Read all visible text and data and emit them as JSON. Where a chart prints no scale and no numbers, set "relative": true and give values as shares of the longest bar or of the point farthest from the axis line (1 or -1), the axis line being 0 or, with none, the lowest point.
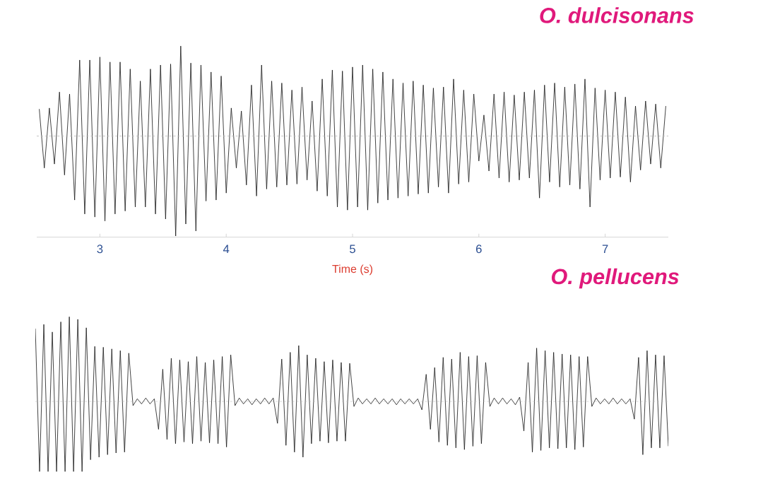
{
  "chart_data": [
    {
      "type": "line",
      "title": "O. dulcisonans",
      "xlabel": "Time (s)",
      "relative": true,
      "xlim": [
        2.5,
        7.5
      ],
      "xticks": [
        3,
        4,
        5,
        6,
        7
      ],
      "color": "#141414",
      "ref_lines": [
        {
          "axis": "y",
          "value": 0,
          "line_style": "dashed",
          "color": "#b4b4b4"
        }
      ],
      "x": [
        2.52,
        2.56,
        2.6,
        2.64,
        2.68,
        2.72,
        2.76,
        2.8,
        2.84,
        2.88,
        2.92,
        2.96,
        3,
        3.04,
        3.08,
        3.12,
        3.16,
        3.2,
        3.24,
        3.28,
        3.32,
        3.36,
        3.4,
        3.44,
        3.48,
        3.52,
        3.56,
        3.6,
        3.64,
        3.68,
        3.72,
        3.76,
        3.8,
        3.84,
        3.88,
        3.92,
        3.96,
        4,
        4.04,
        4.08,
        4.12,
        4.16,
        4.2,
        4.24,
        4.28,
        4.32,
        4.36,
        4.4,
        4.44,
        4.48,
        4.52,
        4.56,
        4.6,
        4.64,
        4.68,
        4.72,
        4.76,
        4.8,
        4.84,
        4.88,
        4.92,
        4.96,
        5,
        5.04,
        5.08,
        5.12,
        5.16,
        5.2,
        5.24,
        5.28,
        5.32,
        5.36,
        5.4,
        5.44,
        5.48,
        5.52,
        5.56,
        5.6,
        5.64,
        5.68,
        5.72,
        5.76,
        5.8,
        5.84,
        5.88,
        5.92,
        5.96,
        6,
        6.04,
        6.08,
        6.12,
        6.16,
        6.2,
        6.24,
        6.28,
        6.32,
        6.36,
        6.4,
        6.44,
        6.48,
        6.52,
        6.56,
        6.6,
        6.64,
        6.68,
        6.72,
        6.76,
        6.8,
        6.84,
        6.88,
        6.92,
        6.96,
        7,
        7.04,
        7.08,
        7.12,
        7.16,
        7.2,
        7.24,
        7.28,
        7.32,
        7.36,
        7.4,
        7.44,
        7.48
      ],
      "values": [
        0.27,
        -0.32,
        0.28,
        -0.28,
        0.44,
        -0.39,
        0.42,
        -0.64,
        0.76,
        -0.78,
        0.76,
        -0.81,
        0.79,
        -0.85,
        0.74,
        -0.78,
        0.74,
        -0.75,
        0.67,
        -0.71,
        0.55,
        -0.71,
        0.67,
        -0.78,
        0.71,
        -0.83,
        0.72,
        -1,
        0.9,
        -0.88,
        0.73,
        -0.95,
        0.71,
        -0.65,
        0.64,
        -0.64,
        0.6,
        -0.57,
        0.28,
        -0.32,
        0.25,
        -0.49,
        0.51,
        -0.6,
        0.71,
        -0.53,
        0.55,
        -0.51,
        0.53,
        -0.49,
        0.46,
        -0.48,
        0.49,
        -0.44,
        0.35,
        -0.55,
        0.57,
        -0.6,
        0.66,
        -0.71,
        0.65,
        -0.74,
        0.69,
        -0.71,
        0.71,
        -0.74,
        0.67,
        -0.67,
        0.64,
        -0.64,
        0.57,
        -0.62,
        0.53,
        -0.6,
        0.55,
        -0.58,
        0.51,
        -0.57,
        0.48,
        -0.51,
        0.49,
        -0.57,
        0.57,
        -0.48,
        0.46,
        -0.46,
        0.42,
        -0.25,
        0.21,
        -0.35,
        0.42,
        -0.42,
        0.44,
        -0.46,
        0.41,
        -0.44,
        0.44,
        -0.42,
        0.46,
        -0.62,
        0.51,
        -0.46,
        0.53,
        -0.51,
        0.49,
        -0.49,
        0.52,
        -0.53,
        0.57,
        -0.71,
        0.48,
        -0.44,
        0.46,
        -0.42,
        0.44,
        -0.41,
        0.39,
        -0.46,
        0.3,
        -0.34,
        0.35,
        -0.28,
        0.32,
        -0.32,
        0.3
      ]
    },
    {
      "type": "line",
      "title": "O. pellucens",
      "relative": true,
      "color": "#141414",
      "ref_lines": [
        {
          "axis": "y",
          "value": 0,
          "line_style": "dashed",
          "color": "#b4b4b4"
        }
      ],
      "categories": [
        null,
        null,
        null,
        null,
        null,
        null,
        null,
        null,
        null,
        null,
        null,
        null,
        null,
        null,
        null,
        null,
        null,
        null,
        null,
        null,
        null,
        null,
        null,
        null,
        null,
        null,
        null,
        null,
        null,
        null,
        null,
        null,
        null,
        null,
        null,
        null,
        null,
        null,
        null,
        null,
        null,
        null,
        null,
        null,
        null,
        null,
        null,
        null,
        null,
        null,
        null,
        null,
        null,
        null,
        null,
        null,
        null,
        null,
        null,
        null,
        null,
        null,
        null,
        null,
        null,
        null,
        null,
        null,
        null,
        null,
        null,
        null,
        null,
        null,
        null,
        null,
        null,
        null,
        null,
        null,
        null,
        null,
        null,
        null,
        null,
        null,
        null,
        null,
        null,
        null,
        null,
        null,
        null,
        null,
        null,
        null,
        null,
        null,
        null,
        null,
        null,
        null,
        null,
        null,
        null,
        null,
        null,
        null,
        null,
        null,
        null,
        null,
        null,
        null,
        null,
        null,
        null,
        null,
        null,
        null,
        null,
        null,
        null,
        null,
        null,
        null,
        null,
        null,
        null,
        null,
        null,
        null,
        null,
        null,
        null,
        null,
        null,
        null,
        null,
        null,
        null,
        null,
        null,
        null,
        null,
        null,
        null,
        null,
        null,
        null
      ],
      "values": [
        0.86,
        -0.83,
        0.91,
        -0.83,
        0.82,
        -0.83,
        0.94,
        -0.83,
        1,
        -0.83,
        0.97,
        -0.83,
        0.87,
        -0.69,
        0.65,
        -0.66,
        0.64,
        -0.63,
        0.62,
        -0.61,
        0.6,
        -0.6,
        0.57,
        -0.05,
        0.03,
        -0.03,
        0.04,
        -0.03,
        0.03,
        -0.33,
        0.38,
        -0.45,
        0.51,
        -0.5,
        0.49,
        -0.48,
        0.47,
        -0.5,
        0.53,
        -0.47,
        0.46,
        -0.49,
        0.49,
        -0.5,
        0.53,
        -0.54,
        0.55,
        -0.05,
        0.04,
        -0.03,
        0.03,
        -0.04,
        0.03,
        -0.03,
        0.04,
        -0.03,
        0.04,
        -0.26,
        0.5,
        -0.52,
        0.58,
        -0.6,
        0.66,
        -0.66,
        0.55,
        -0.5,
        0.51,
        -0.47,
        0.47,
        -0.49,
        0.49,
        -0.47,
        0.46,
        -0.47,
        0.45,
        -0.06,
        0.04,
        -0.03,
        0.03,
        -0.03,
        0.04,
        -0.03,
        0.03,
        -0.03,
        0.03,
        -0.04,
        0.03,
        -0.03,
        0.03,
        -0.03,
        0.03,
        -0.1,
        0.32,
        -0.33,
        0.4,
        -0.48,
        0.52,
        -0.52,
        0.5,
        -0.55,
        0.58,
        -0.57,
        0.53,
        -0.53,
        0.54,
        -0.5,
        0.46,
        -0.06,
        0.04,
        -0.03,
        0.04,
        -0.03,
        0.03,
        -0.04,
        0.05,
        -0.35,
        0.46,
        -0.6,
        0.63,
        -0.58,
        0.6,
        -0.55,
        0.58,
        -0.56,
        0.56,
        -0.55,
        0.55,
        -0.57,
        0.53,
        -0.54,
        0.53,
        -0.06,
        0.04,
        -0.03,
        0.03,
        -0.03,
        0.04,
        -0.03,
        0.03,
        -0.03,
        0.03,
        -0.21,
        0.52,
        -0.63,
        0.6,
        -0.55,
        0.55,
        -0.55,
        0.54,
        -0.53
      ]
    }
  ]
}
